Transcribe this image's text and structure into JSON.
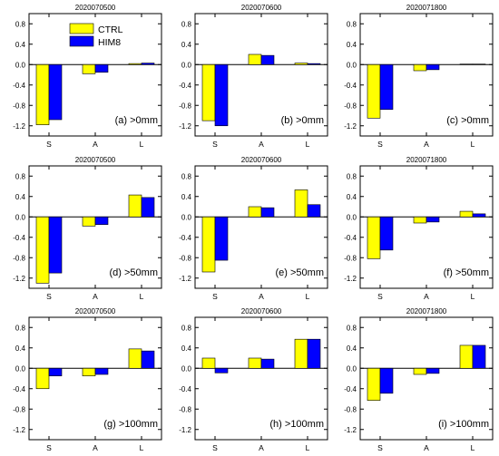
{
  "chart_data": [
    {
      "type": "bar",
      "title": "2020070500",
      "annotation": "(a) >0mm",
      "categories": [
        "S",
        "A",
        "L"
      ],
      "ylim": [
        -1.4,
        1.0
      ],
      "yticks": [
        "0.8",
        "0.4",
        "0.0",
        "-0.4",
        "-0.8",
        "-1.2"
      ],
      "series": [
        {
          "name": "CTRL",
          "color": "#ffff00",
          "values": [
            -1.18,
            -0.18,
            0.02
          ]
        },
        {
          "name": "HIM8",
          "color": "#0000ff",
          "values": [
            -1.08,
            -0.15,
            0.03
          ]
        }
      ],
      "legend": "top-left"
    },
    {
      "type": "bar",
      "title": "2020070600",
      "annotation": "(b) >0mm",
      "categories": [
        "S",
        "A",
        "L"
      ],
      "ylim": [
        -1.4,
        1.0
      ],
      "yticks": [
        "0.8",
        "0.4",
        "0.0",
        "-0.4",
        "-0.8",
        "-1.2"
      ],
      "series": [
        {
          "name": "CTRL",
          "color": "#ffff00",
          "values": [
            -1.1,
            0.2,
            0.03
          ]
        },
        {
          "name": "HIM8",
          "color": "#0000ff",
          "values": [
            -1.2,
            0.18,
            0.02
          ]
        }
      ]
    },
    {
      "type": "bar",
      "title": "2020071800",
      "annotation": "(c) >0mm",
      "categories": [
        "S",
        "A",
        "L"
      ],
      "ylim": [
        -1.4,
        1.0
      ],
      "yticks": [
        "0.8",
        "0.4",
        "0.0",
        "-0.4",
        "-0.8",
        "-1.2"
      ],
      "series": [
        {
          "name": "CTRL",
          "color": "#ffff00",
          "values": [
            -1.05,
            -0.12,
            0.01
          ]
        },
        {
          "name": "HIM8",
          "color": "#0000ff",
          "values": [
            -0.88,
            -0.1,
            0.01
          ]
        }
      ]
    },
    {
      "type": "bar",
      "title": "2020070500",
      "annotation": "(d) >50mm",
      "categories": [
        "S",
        "A",
        "L"
      ],
      "ylim": [
        -1.4,
        1.0
      ],
      "yticks": [
        "0.8",
        "0.4",
        "0.0",
        "-0.4",
        "-0.8",
        "-1.2"
      ],
      "series": [
        {
          "name": "CTRL",
          "color": "#ffff00",
          "values": [
            -1.3,
            -0.18,
            0.43
          ]
        },
        {
          "name": "HIM8",
          "color": "#0000ff",
          "values": [
            -1.1,
            -0.15,
            0.38
          ]
        }
      ]
    },
    {
      "type": "bar",
      "title": "2020070600",
      "annotation": "(e) >50mm",
      "categories": [
        "S",
        "A",
        "L"
      ],
      "ylim": [
        -1.4,
        1.0
      ],
      "yticks": [
        "0.8",
        "0.4",
        "0.0",
        "-0.4",
        "-0.8",
        "-1.2"
      ],
      "series": [
        {
          "name": "CTRL",
          "color": "#ffff00",
          "values": [
            -1.08,
            0.2,
            0.53
          ]
        },
        {
          "name": "HIM8",
          "color": "#0000ff",
          "values": [
            -0.85,
            0.18,
            0.24
          ]
        }
      ]
    },
    {
      "type": "bar",
      "title": "2020071800",
      "annotation": "(f) >50mm",
      "categories": [
        "S",
        "A",
        "L"
      ],
      "ylim": [
        -1.4,
        1.0
      ],
      "yticks": [
        "0.8",
        "0.4",
        "0.0",
        "-0.4",
        "-0.8",
        "-1.2"
      ],
      "series": [
        {
          "name": "CTRL",
          "color": "#ffff00",
          "values": [
            -0.82,
            -0.12,
            0.11
          ]
        },
        {
          "name": "HIM8",
          "color": "#0000ff",
          "values": [
            -0.65,
            -0.1,
            0.06
          ]
        }
      ]
    },
    {
      "type": "bar",
      "title": "2020070500",
      "annotation": "(g) >100mm",
      "categories": [
        "S",
        "A",
        "L"
      ],
      "ylim": [
        -1.4,
        1.0
      ],
      "yticks": [
        "0.8",
        "0.4",
        "0.0",
        "-0.4",
        "-0.8",
        "-1.2"
      ],
      "series": [
        {
          "name": "CTRL",
          "color": "#ffff00",
          "values": [
            -0.4,
            -0.15,
            0.38
          ]
        },
        {
          "name": "HIM8",
          "color": "#0000ff",
          "values": [
            -0.15,
            -0.12,
            0.34
          ]
        }
      ]
    },
    {
      "type": "bar",
      "title": "2020070600",
      "annotation": "(h) >100mm",
      "categories": [
        "S",
        "A",
        "L"
      ],
      "ylim": [
        -1.4,
        1.0
      ],
      "yticks": [
        "0.8",
        "0.4",
        "0.0",
        "-0.4",
        "-0.8",
        "-1.2"
      ],
      "series": [
        {
          "name": "CTRL",
          "color": "#ffff00",
          "values": [
            0.2,
            0.2,
            0.57
          ]
        },
        {
          "name": "HIM8",
          "color": "#0000ff",
          "values": [
            -0.09,
            0.18,
            0.57
          ]
        }
      ]
    },
    {
      "type": "bar",
      "title": "2020071800",
      "annotation": "(i) >100mm",
      "categories": [
        "S",
        "A",
        "L"
      ],
      "ylim": [
        -1.4,
        1.0
      ],
      "yticks": [
        "0.8",
        "0.4",
        "0.0",
        "-0.4",
        "-0.8",
        "-1.2"
      ],
      "series": [
        {
          "name": "CTRL",
          "color": "#ffff00",
          "values": [
            -0.63,
            -0.12,
            0.45
          ]
        },
        {
          "name": "HIM8",
          "color": "#0000ff",
          "values": [
            -0.49,
            -0.1,
            0.45
          ]
        }
      ]
    }
  ]
}
